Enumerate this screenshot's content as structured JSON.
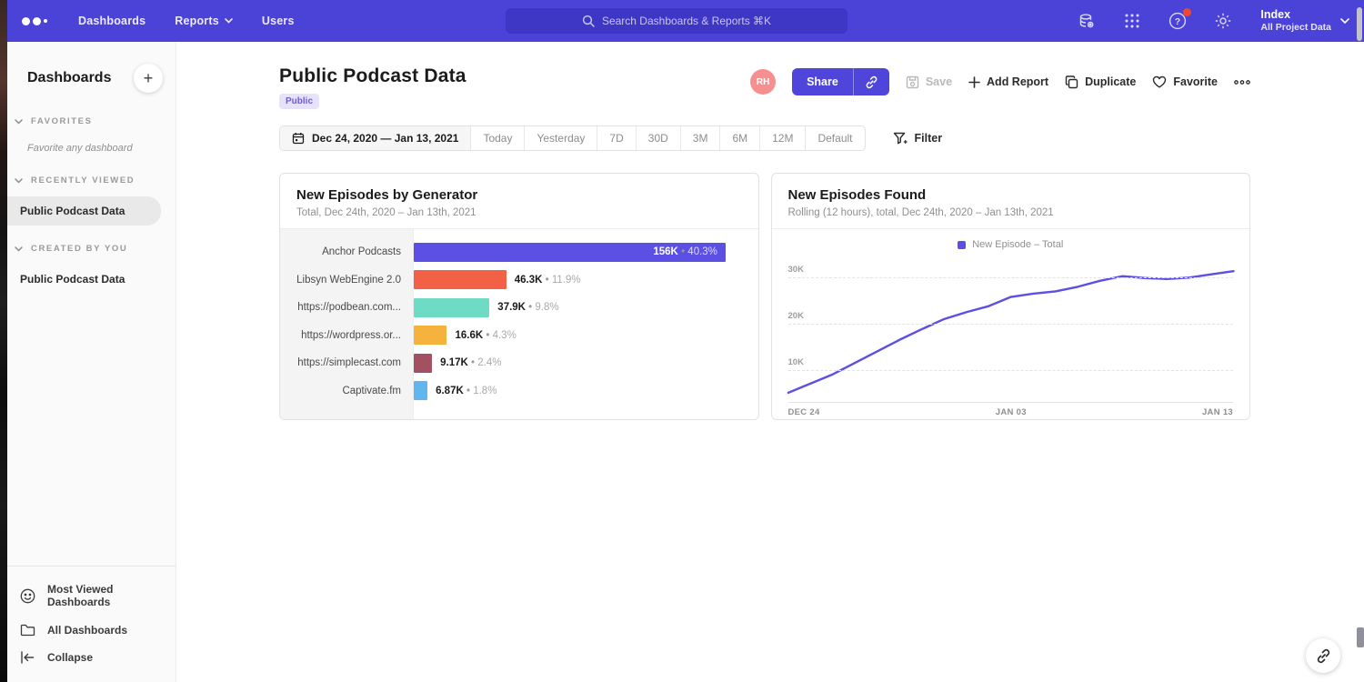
{
  "topnav": {
    "links": [
      {
        "label": "Dashboards"
      },
      {
        "label": "Reports"
      },
      {
        "label": "Users"
      }
    ],
    "search_placeholder": "Search Dashboards & Reports ⌘K",
    "project": {
      "name": "Index",
      "subtitle": "All Project Data"
    }
  },
  "sidebar": {
    "title": "Dashboards",
    "sections": {
      "favorites": "FAVORITES",
      "favorites_empty": "Favorite any dashboard",
      "recent": "RECENTLY VIEWED",
      "recent_item": "Public Podcast Data",
      "created": "CREATED BY YOU",
      "created_item": "Public Podcast Data"
    },
    "footer": {
      "most_viewed": "Most Viewed Dashboards",
      "all_dashboards": "All Dashboards",
      "collapse": "Collapse"
    }
  },
  "page": {
    "title": "Public Podcast Data",
    "badge": "Public",
    "date_range": "Dec 24, 2020 — Jan 13, 2021",
    "range_options": [
      "Today",
      "Yesterday",
      "7D",
      "30D",
      "3M",
      "6M",
      "12M",
      "Default"
    ],
    "filter_label": "Filter",
    "actions": {
      "avatar_initials": "RH",
      "share": "Share",
      "save": "Save",
      "add_report": "Add Report",
      "duplicate": "Duplicate",
      "favorite": "Favorite"
    }
  },
  "colors": {
    "navbar": "#4b42d8",
    "accent": "#5b4fe4",
    "avatar": "#f69090",
    "help_badge": "#f0482f"
  },
  "chart_data": [
    {
      "type": "bar",
      "orientation": "horizontal",
      "title": "New Episodes by Generator",
      "subtitle": "Total, Dec 24th, 2020 – Jan 13th, 2021",
      "categories": [
        "Anchor Podcasts",
        "Libsyn WebEngine 2.0",
        "https://podbean.com...",
        "https://wordpress.or...",
        "https://simplecast.com",
        "Captivate.fm"
      ],
      "values": [
        156000,
        46300,
        37900,
        16600,
        9170,
        6870
      ],
      "value_labels": [
        "156K",
        "46.3K",
        "37.9K",
        "16.6K",
        "9.17K",
        "6.87K"
      ],
      "pct_labels": [
        "40.3%",
        "11.9%",
        "9.8%",
        "4.3%",
        "2.4%",
        "1.8%"
      ],
      "colors": [
        "#5b4fe4",
        "#f26146",
        "#6edcc4",
        "#f5b33e",
        "#a35062",
        "#61b6ed"
      ],
      "xmax": 164000
    },
    {
      "type": "line",
      "title": "New Episodes Found",
      "subtitle": "Rolling (12 hours), total, Dec 24th, 2020 – Jan 13th, 2021",
      "legend": [
        {
          "label": "New Episode – Total",
          "color": "#5b4fe4"
        }
      ],
      "x_ticks": [
        "DEC 24",
        "JAN 03",
        "JAN 13"
      ],
      "y_grid": [
        10000,
        20000,
        30000
      ],
      "y_tick_labels": [
        "10K",
        "20K",
        "30K"
      ],
      "ylim": [
        3000,
        34000
      ],
      "values": [
        5000,
        7000,
        9000,
        11500,
        14000,
        16500,
        18800,
        21000,
        22500,
        23800,
        25800,
        26500,
        27000,
        28000,
        29300,
        30300,
        29900,
        29700,
        30000,
        30700,
        31400
      ]
    }
  ]
}
